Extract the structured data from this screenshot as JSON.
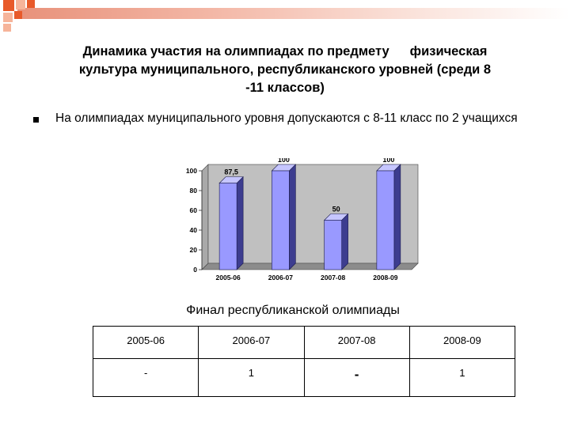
{
  "slide": {
    "title_part1": "Динамика участия на олимпиадах по предмету",
    "title_part2": "физическая",
    "title_line2": "культура муниципального, республиканского уровней (среди 8",
    "title_line3": "-11 классов)",
    "bullet_text": "На олимпиадах муниципального уровня допускаются с 8-11 класс по 2 учащихся",
    "chart_caption": "Финал республиканской олимпиады",
    "colors": {
      "accent": "#e85a2a",
      "bar": "#9999ff",
      "bar_side": "#3d3d8f",
      "plot_bg": "#c0c0c0"
    }
  },
  "chart_data": {
    "type": "bar",
    "categories": [
      "2005-06",
      "2006-07",
      "2007-08",
      "2008-09"
    ],
    "values": [
      87.5,
      100,
      50,
      100
    ],
    "value_labels": [
      "87,5",
      "100",
      "50",
      "100"
    ],
    "yticks": [
      "0",
      "20",
      "40",
      "60",
      "80",
      "100"
    ],
    "ylim": [
      0,
      100
    ],
    "grid": false,
    "legend": "none",
    "style": "3d"
  },
  "final_table": {
    "header": [
      "2005-06",
      "2006-07",
      "2007-08",
      "2008-09"
    ],
    "row": [
      "-",
      "1",
      "-",
      "1"
    ]
  }
}
